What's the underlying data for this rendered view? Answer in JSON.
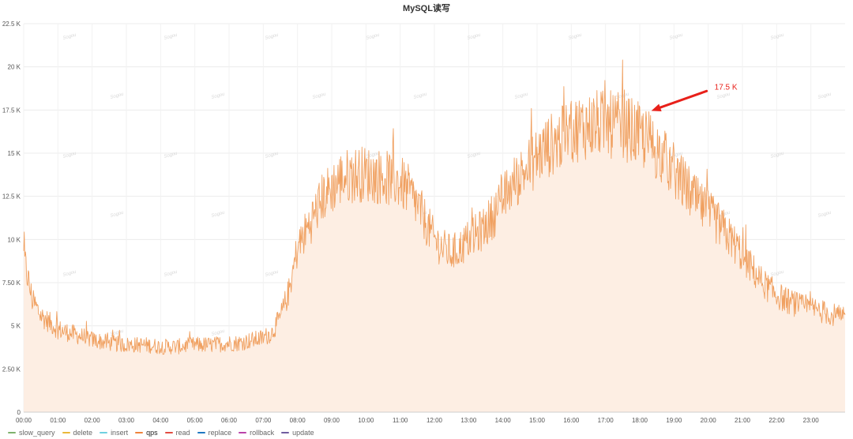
{
  "chart_data": {
    "type": "area",
    "title": "MySQL读写",
    "xlabel": "",
    "ylabel": "",
    "ylim": [
      0,
      22500
    ],
    "y_ticks": [
      {
        "value": 0,
        "label": "0"
      },
      {
        "value": 2500,
        "label": "2.50 K"
      },
      {
        "value": 5000,
        "label": "5 K"
      },
      {
        "value": 7500,
        "label": "7.50 K"
      },
      {
        "value": 10000,
        "label": "10 K"
      },
      {
        "value": 12500,
        "label": "12.5 K"
      },
      {
        "value": 15000,
        "label": "15 K"
      },
      {
        "value": 17500,
        "label": "17.5 K"
      },
      {
        "value": 20000,
        "label": "20 K"
      },
      {
        "value": 22500,
        "label": "22.5 K"
      }
    ],
    "xlim": [
      0,
      24
    ],
    "x_ticks": [
      {
        "value": 0,
        "label": "00:00"
      },
      {
        "value": 1,
        "label": "01:00"
      },
      {
        "value": 2,
        "label": "02:00"
      },
      {
        "value": 3,
        "label": "03:00"
      },
      {
        "value": 4,
        "label": "04:00"
      },
      {
        "value": 5,
        "label": "05:00"
      },
      {
        "value": 6,
        "label": "06:00"
      },
      {
        "value": 7,
        "label": "07:00"
      },
      {
        "value": 8,
        "label": "08:00"
      },
      {
        "value": 9,
        "label": "09:00"
      },
      {
        "value": 10,
        "label": "10:00"
      },
      {
        "value": 11,
        "label": "11:00"
      },
      {
        "value": 12,
        "label": "12:00"
      },
      {
        "value": 13,
        "label": "13:00"
      },
      {
        "value": 14,
        "label": "14:00"
      },
      {
        "value": 15,
        "label": "15:00"
      },
      {
        "value": 16,
        "label": "16:00"
      },
      {
        "value": 17,
        "label": "17:00"
      },
      {
        "value": 18,
        "label": "18:00"
      },
      {
        "value": 19,
        "label": "19:00"
      },
      {
        "value": 20,
        "label": "20:00"
      },
      {
        "value": 21,
        "label": "21:00"
      },
      {
        "value": 22,
        "label": "22:00"
      },
      {
        "value": 23,
        "label": "23:00"
      }
    ],
    "grid": true,
    "legend_position": "bottom-left",
    "series": [
      {
        "name": "qps",
        "color": "#f0a060",
        "fill": "#fdeee3",
        "x": [
          0,
          0.25,
          0.5,
          1,
          1.5,
          2,
          2.5,
          3,
          3.5,
          4,
          4.5,
          5,
          5.5,
          6,
          6.25,
          6.5,
          6.75,
          7,
          7.25,
          7.5,
          7.75,
          8,
          8.25,
          8.5,
          8.75,
          9,
          9.25,
          9.5,
          9.75,
          10,
          10.25,
          10.5,
          10.75,
          11,
          11.25,
          11.5,
          11.75,
          12,
          12.25,
          12.5,
          12.75,
          13,
          13.25,
          13.5,
          13.75,
          14,
          14.25,
          14.5,
          14.75,
          15,
          15.25,
          15.5,
          15.75,
          16,
          16.25,
          16.5,
          16.75,
          17,
          17.25,
          17.5,
          17.75,
          18,
          18.25,
          18.5,
          18.75,
          19,
          19.25,
          19.5,
          19.75,
          20,
          20.25,
          20.5,
          20.75,
          21,
          21.25,
          21.5,
          21.75,
          22,
          22.25,
          22.5,
          22.75,
          23,
          23.25,
          23.5,
          23.75,
          24
        ],
        "values": [
          9000,
          6500,
          5600,
          4800,
          4500,
          4200,
          4000,
          3900,
          3900,
          3800,
          3800,
          3900,
          3900,
          4000,
          4000,
          4100,
          4200,
          4300,
          4600,
          5500,
          7000,
          9500,
          10500,
          11500,
          12500,
          13000,
          13500,
          13700,
          13800,
          13800,
          13700,
          13600,
          13500,
          13300,
          12800,
          12000,
          11000,
          10000,
          9500,
          9200,
          9500,
          10000,
          10300,
          10800,
          11500,
          12300,
          13100,
          13700,
          14200,
          14800,
          15300,
          15600,
          15900,
          16300,
          16500,
          16600,
          16700,
          16700,
          16600,
          16500,
          16300,
          16000,
          15700,
          15200,
          14600,
          14000,
          13300,
          12600,
          12000,
          11500,
          11000,
          10400,
          9800,
          9100,
          8400,
          7700,
          7200,
          6800,
          6500,
          6300,
          6100,
          6000,
          5900,
          5700,
          5600,
          5400
        ],
        "notes": "Noisy 1-minute samples oscillate roughly ±15% around this trend; peak near 20 K at ~17:00."
      }
    ],
    "annotations": [
      {
        "text": "17.5 K",
        "x": 18.2,
        "y": 17500,
        "color": "#e8201a"
      }
    ]
  },
  "legend": [
    {
      "label": "slow_query",
      "color": "#7eb26d",
      "active": false
    },
    {
      "label": "delete",
      "color": "#eab839",
      "active": false
    },
    {
      "label": "insert",
      "color": "#6ed0e0",
      "active": false
    },
    {
      "label": "qps",
      "color": "#ef843c",
      "active": true
    },
    {
      "label": "read",
      "color": "#e24d42",
      "active": false
    },
    {
      "label": "replace",
      "color": "#1f78c1",
      "active": false
    },
    {
      "label": "rollback",
      "color": "#ba43a9",
      "active": false
    },
    {
      "label": "update",
      "color": "#705da0",
      "active": false
    }
  ],
  "watermark_text": "Sogou"
}
